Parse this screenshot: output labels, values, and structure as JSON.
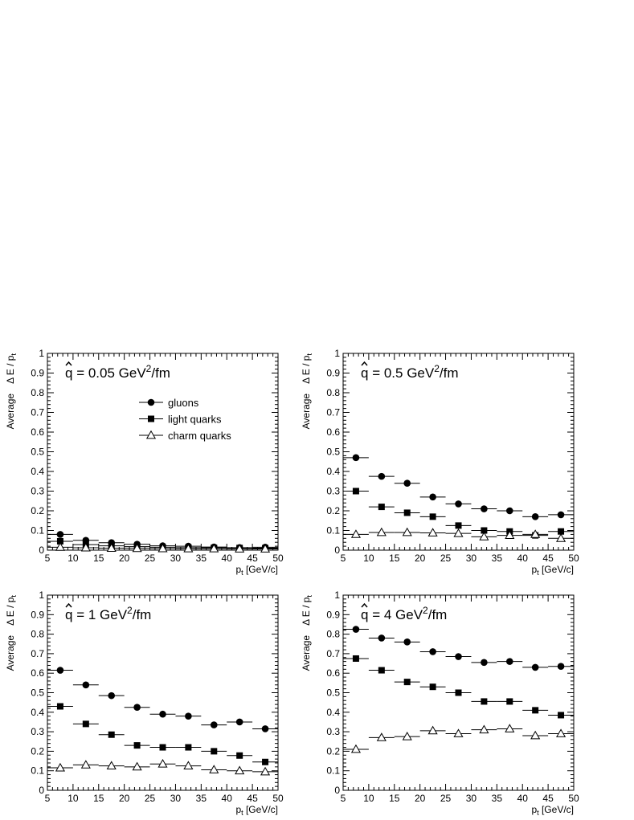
{
  "chart_data": [
    {
      "type": "scatter",
      "title_q": "q",
      "title_rest": " = 0.05 GeV",
      "title_sup": "2",
      "title_tail": "/fm",
      "xlabel": "p",
      "xlabel_sub": "t",
      "xlabel_units": " [GeV/c]",
      "ylabel_avg": "Average",
      "ylabel_de": "Δ E / p",
      "ylabel_sub": "t",
      "xlim": [
        5,
        50
      ],
      "ylim": [
        0,
        1
      ],
      "xticks": [
        "5",
        "10",
        "15",
        "20",
        "25",
        "30",
        "35",
        "40",
        "45",
        "50"
      ],
      "yticks": [
        "0",
        "0.1",
        "0.2",
        "0.3",
        "0.4",
        "0.5",
        "0.6",
        "0.7",
        "0.8",
        "0.9",
        "1"
      ],
      "x": [
        7.5,
        12.5,
        17.5,
        22.5,
        27.5,
        32.5,
        37.5,
        42.5,
        47.5
      ],
      "x_half_width": 2.5,
      "legend": {
        "placement": "top-center",
        "entries": [
          "gluons",
          "light quarks",
          "charm quarks"
        ]
      },
      "series": [
        {
          "name": "gluons",
          "marker": "circle",
          "values": [
            0.08,
            0.05,
            0.038,
            0.03,
            0.022,
            0.02,
            0.016,
            0.013,
            0.015
          ]
        },
        {
          "name": "light quarks",
          "marker": "square",
          "values": [
            0.045,
            0.028,
            0.022,
            0.018,
            0.015,
            0.013,
            0.012,
            0.011,
            0.01
          ]
        },
        {
          "name": "charm quarks",
          "marker": "triangle-open",
          "values": [
            0.015,
            0.012,
            0.01,
            0.009,
            0.008,
            0.007,
            0.007,
            0.006,
            0.006
          ]
        }
      ]
    },
    {
      "type": "scatter",
      "title_q": "q",
      "title_rest": " = 0.5 GeV",
      "title_sup": "2",
      "title_tail": "/fm",
      "xlabel": "p",
      "xlabel_sub": "t",
      "xlabel_units": " [GeV/c]",
      "ylabel_avg": "Average",
      "ylabel_de": "Δ E / p",
      "ylabel_sub": "t",
      "xlim": [
        5,
        50
      ],
      "ylim": [
        0,
        1
      ],
      "xticks": [
        "5",
        "10",
        "15",
        "20",
        "25",
        "30",
        "35",
        "40",
        "45",
        "50"
      ],
      "yticks": [
        "0",
        "0.1",
        "0.2",
        "0.3",
        "0.4",
        "0.5",
        "0.6",
        "0.7",
        "0.8",
        "0.9",
        "1"
      ],
      "x": [
        7.5,
        12.5,
        17.5,
        22.5,
        27.5,
        32.5,
        37.5,
        42.5,
        47.5
      ],
      "x_half_width": 2.5,
      "series": [
        {
          "name": "gluons",
          "marker": "circle",
          "values": [
            0.47,
            0.375,
            0.34,
            0.27,
            0.235,
            0.21,
            0.2,
            0.17,
            0.18
          ]
        },
        {
          "name": "light quarks",
          "marker": "square",
          "values": [
            0.3,
            0.22,
            0.19,
            0.17,
            0.125,
            0.1,
            0.095,
            0.075,
            0.095
          ]
        },
        {
          "name": "charm quarks",
          "marker": "triangle-open",
          "values": [
            0.08,
            0.09,
            0.09,
            0.088,
            0.085,
            0.068,
            0.075,
            0.08,
            0.06
          ]
        }
      ]
    },
    {
      "type": "scatter",
      "title_q": "q",
      "title_rest": " = 1 GeV",
      "title_sup": "2",
      "title_tail": "/fm",
      "xlabel": "p",
      "xlabel_sub": "t",
      "xlabel_units": " [GeV/c]",
      "ylabel_avg": "Average",
      "ylabel_de": "Δ E / p",
      "ylabel_sub": "t",
      "xlim": [
        5,
        50
      ],
      "ylim": [
        0,
        1
      ],
      "xticks": [
        "5",
        "10",
        "15",
        "20",
        "25",
        "30",
        "35",
        "40",
        "45",
        "50"
      ],
      "yticks": [
        "0",
        "0.1",
        "0.2",
        "0.3",
        "0.4",
        "0.5",
        "0.6",
        "0.7",
        "0.8",
        "0.9",
        "1"
      ],
      "x": [
        7.5,
        12.5,
        17.5,
        22.5,
        27.5,
        32.5,
        37.5,
        42.5,
        47.5
      ],
      "x_half_width": 2.5,
      "series": [
        {
          "name": "gluons",
          "marker": "circle",
          "values": [
            0.615,
            0.54,
            0.485,
            0.425,
            0.39,
            0.38,
            0.335,
            0.35,
            0.315
          ]
        },
        {
          "name": "light quarks",
          "marker": "square",
          "values": [
            0.43,
            0.34,
            0.285,
            0.23,
            0.22,
            0.22,
            0.2,
            0.178,
            0.145
          ]
        },
        {
          "name": "charm quarks",
          "marker": "triangle-open",
          "values": [
            0.115,
            0.13,
            0.125,
            0.12,
            0.135,
            0.125,
            0.105,
            0.1,
            0.095
          ]
        }
      ]
    },
    {
      "type": "scatter",
      "title_q": "q",
      "title_rest": " = 4 GeV",
      "title_sup": "2",
      "title_tail": "/fm",
      "xlabel": "p",
      "xlabel_sub": "t",
      "xlabel_units": " [GeV/c]",
      "ylabel_avg": "Average",
      "ylabel_de": "Δ E / p",
      "ylabel_sub": "t",
      "xlim": [
        5,
        50
      ],
      "ylim": [
        0,
        1
      ],
      "xticks": [
        "5",
        "10",
        "15",
        "20",
        "25",
        "30",
        "35",
        "40",
        "45",
        "50"
      ],
      "yticks": [
        "0",
        "0.1",
        "0.2",
        "0.3",
        "0.4",
        "0.5",
        "0.6",
        "0.7",
        "0.8",
        "0.9",
        "1"
      ],
      "x": [
        7.5,
        12.5,
        17.5,
        22.5,
        27.5,
        32.5,
        37.5,
        42.5,
        47.5
      ],
      "x_half_width": 2.5,
      "series": [
        {
          "name": "gluons",
          "marker": "circle",
          "values": [
            0.825,
            0.78,
            0.76,
            0.71,
            0.685,
            0.655,
            0.66,
            0.63,
            0.635
          ]
        },
        {
          "name": "light quarks",
          "marker": "square",
          "values": [
            0.675,
            0.615,
            0.555,
            0.53,
            0.5,
            0.455,
            0.455,
            0.41,
            0.385
          ]
        },
        {
          "name": "charm quarks",
          "marker": "triangle-open",
          "values": [
            0.21,
            0.27,
            0.275,
            0.305,
            0.29,
            0.31,
            0.315,
            0.28,
            0.29
          ]
        }
      ]
    }
  ],
  "colors": {
    "ink": "#000000",
    "background": "#ffffff"
  }
}
